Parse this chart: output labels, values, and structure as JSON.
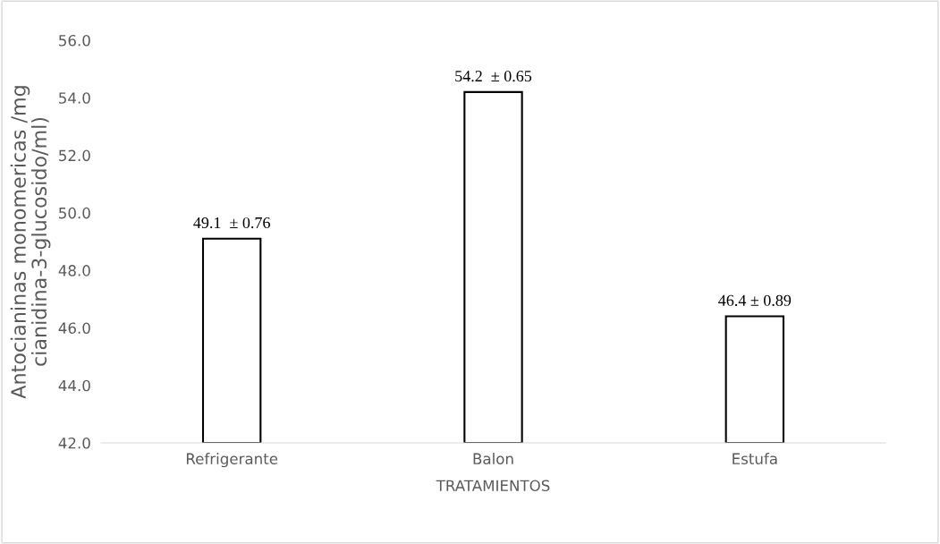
{
  "chart_data": {
    "type": "bar",
    "xlabel": "TRATAMIENTOS",
    "ylabel": "Antocianinas monomericas /mg\ncianidina-3-glucosido/ml)",
    "categories": [
      "Refrigerante",
      "Balon",
      "Estufa"
    ],
    "values": [
      49.1,
      54.2,
      46.4
    ],
    "value_labels": [
      "49.1  ± 0.76",
      "54.2  ± 0.65",
      "46.4 ± 0.89"
    ],
    "color": "#ffffff",
    "ylim": [
      42,
      56
    ],
    "yticks": [
      {
        "value": 42,
        "label": "42.0"
      },
      {
        "value": 44,
        "label": "44.0"
      },
      {
        "value": 46,
        "label": "46.0"
      },
      {
        "value": 48,
        "label": "48.0"
      },
      {
        "value": 50,
        "label": "50.0"
      },
      {
        "value": 52,
        "label": "52.0"
      },
      {
        "value": 54,
        "label": "54.0"
      },
      {
        "value": 56,
        "label": "56.0"
      }
    ],
    "grid": false,
    "legend": false
  }
}
